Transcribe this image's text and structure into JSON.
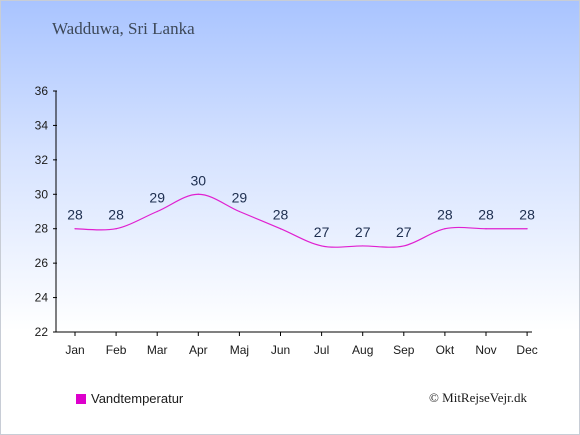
{
  "title": "Wadduwa, Sri Lanka",
  "copyright": "© MitRejseVejr.dk",
  "colors": {
    "series": "#e020d0",
    "legend_swatch": "#dd00cc",
    "axis": "#000000",
    "value_labels": "#1d2e4f"
  },
  "chart_data": {
    "type": "line",
    "title": "Wadduwa, Sri Lanka",
    "xlabel": "",
    "ylabel": "",
    "categories": [
      "Jan",
      "Feb",
      "Mar",
      "Apr",
      "Maj",
      "Jun",
      "Jul",
      "Aug",
      "Sep",
      "Okt",
      "Nov",
      "Dec"
    ],
    "ylim": [
      22,
      36
    ],
    "yticks": [
      22,
      24,
      26,
      28,
      30,
      32,
      34,
      36
    ],
    "grid": false,
    "legend_position": "bottom-left",
    "series": [
      {
        "name": "Vandtemperatur",
        "values": [
          28,
          28,
          29,
          30,
          29,
          28,
          27,
          27,
          27,
          28,
          28,
          28
        ],
        "labels": [
          "28",
          "28",
          "29",
          "30",
          "29",
          "28",
          "27",
          "27",
          "27",
          "28",
          "28",
          "28"
        ]
      }
    ]
  }
}
